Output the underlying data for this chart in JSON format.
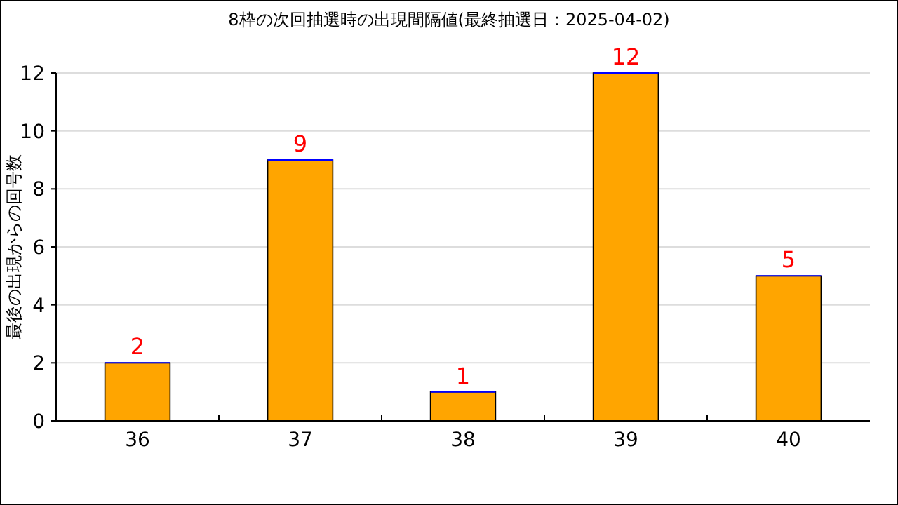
{
  "chart_data": {
    "type": "bar",
    "title": "8枠の次回抽選時の出現間隔値(最終抽選日：2025-04-02)",
    "ylabel": "最後の出現からの回号数",
    "categories": [
      "36",
      "37",
      "38",
      "39",
      "40"
    ],
    "values": [
      2,
      9,
      1,
      12,
      5
    ],
    "color": "#ffa500",
    "ylim": [
      0,
      12
    ],
    "yticks": [
      0,
      2,
      4,
      6,
      8,
      10,
      12
    ],
    "grid": "y",
    "data_labels": true
  }
}
